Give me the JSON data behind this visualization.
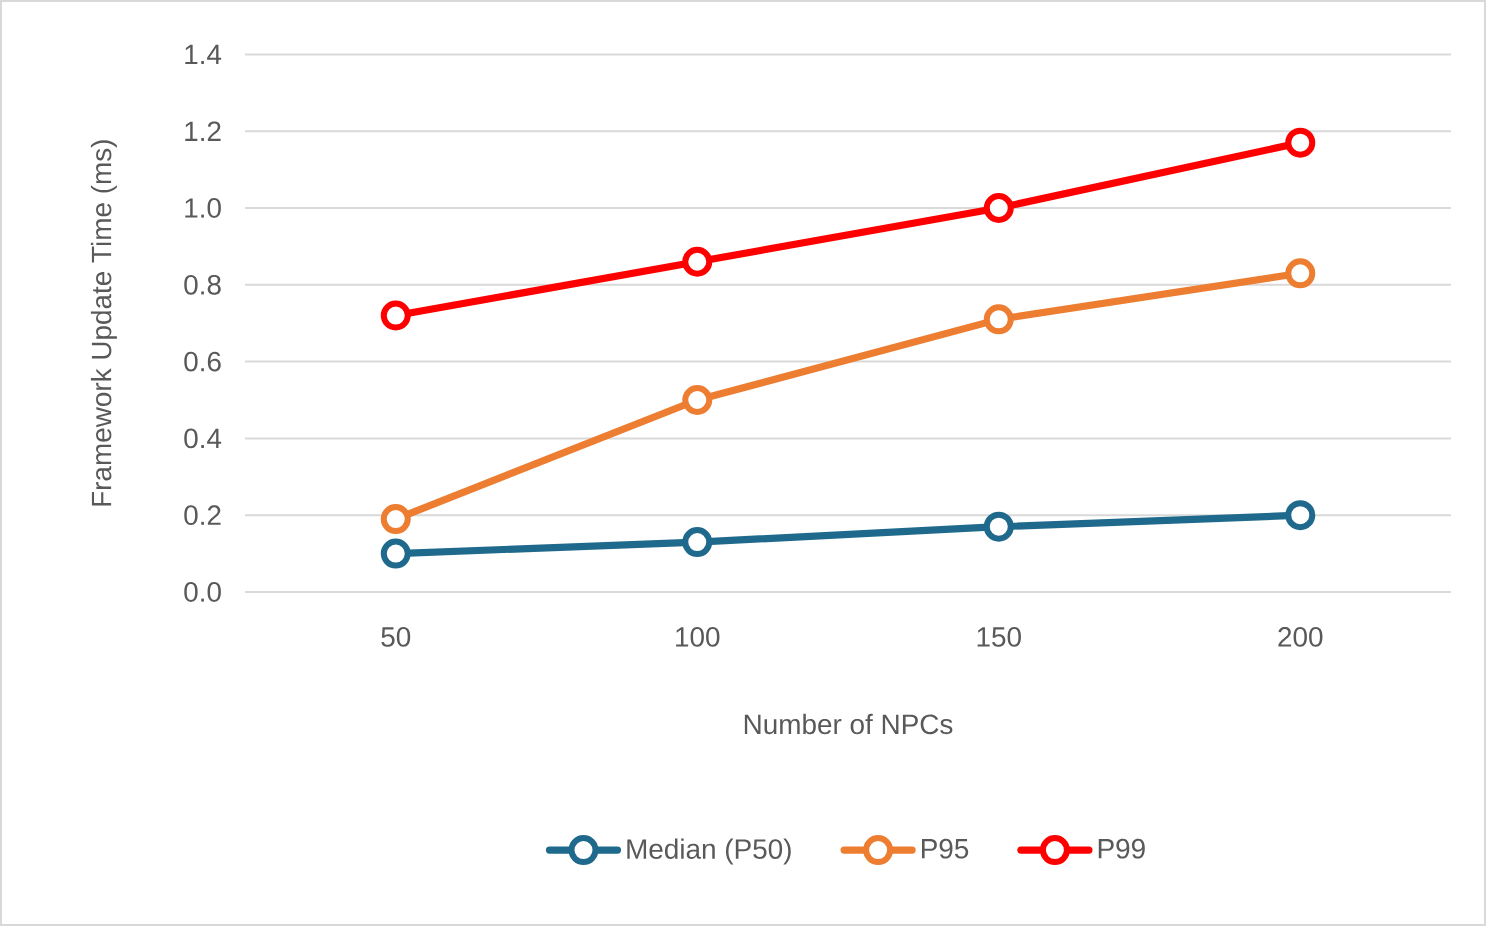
{
  "chart_data": {
    "type": "line",
    "xlabel": "Number of NPCs",
    "ylabel": "Framework Update Time (ms)",
    "categories": [
      "50",
      "100",
      "150",
      "200"
    ],
    "series": [
      {
        "name": "Median (P50)",
        "color": "#1f6a8c",
        "values": [
          0.1,
          0.13,
          0.17,
          0.2
        ]
      },
      {
        "name": "P95",
        "color": "#ed7d31",
        "values": [
          0.19,
          0.5,
          0.71,
          0.83
        ]
      },
      {
        "name": "P99",
        "color": "#ff0000",
        "values": [
          0.72,
          0.86,
          1.0,
          1.17
        ]
      }
    ],
    "ylim": [
      0,
      1.4
    ],
    "yticks": [
      {
        "value": 0,
        "label": "0.0"
      },
      {
        "value": 0.2,
        "label": "0.2"
      },
      {
        "value": 0.4,
        "label": "0.4"
      },
      {
        "value": 0.6,
        "label": "0.6"
      },
      {
        "value": 0.8,
        "label": "0.8"
      },
      {
        "value": 1.0,
        "label": "1.0"
      },
      {
        "value": 1.2,
        "label": "1.2"
      },
      {
        "value": 1.4,
        "label": "1.4"
      }
    ],
    "grid": "y",
    "legend": "bottom",
    "marker": "circle",
    "line_style": "solid"
  }
}
